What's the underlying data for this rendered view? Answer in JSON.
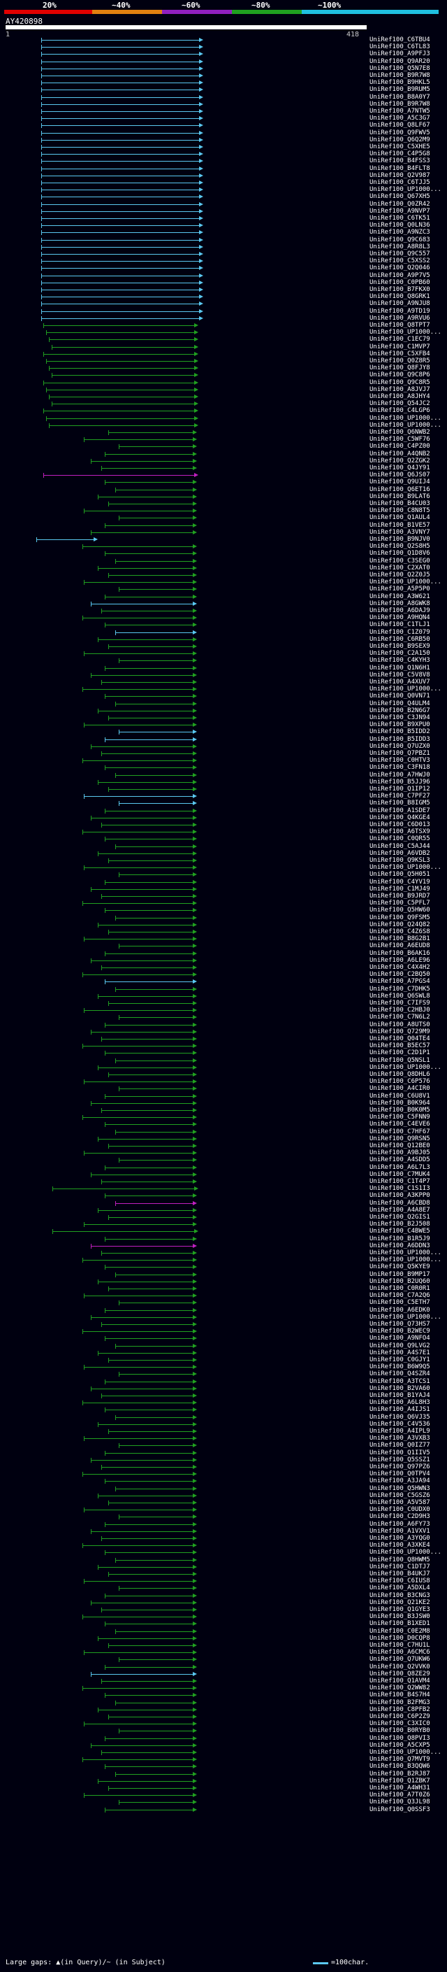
{
  "scale": {
    "labels": [
      "20%",
      "~40%",
      "~60%",
      "~80%",
      "~100%"
    ],
    "colors": [
      "#e00000",
      "#e08010",
      "#9020c0",
      "#20a020",
      "#20c0e0"
    ]
  },
  "query": {
    "title": "AY420898",
    "range_start": "1",
    "range_end": "418"
  },
  "hits": [
    {
      "label": "UniRef100_C6TBU4",
      "color": "#5bc8f0"
    },
    {
      "label": "UniRef100_C6TL83",
      "color": "#5bc8f0"
    },
    {
      "label": "UniRef100_A9PFJ3",
      "color": "#5bc8f0"
    },
    {
      "label": "UniRef100_Q9AR20",
      "color": "#5bc8f0"
    },
    {
      "label": "UniRef100_Q5N7E8",
      "color": "#5bc8f0"
    },
    {
      "label": "UniRef100_B9R7W8",
      "color": "#5bc8f0"
    },
    {
      "label": "UniRef100_B9HKL5",
      "color": "#5bc8f0"
    },
    {
      "label": "UniRef100_B9RUM5",
      "color": "#5bc8f0"
    },
    {
      "label": "UniRef100_B8A0Y7",
      "color": "#5bc8f0"
    },
    {
      "label": "UniRef100_B9R7W8",
      "color": "#5bc8f0"
    },
    {
      "label": "UniRef100_A7NTW5",
      "color": "#5bc8f0"
    },
    {
      "label": "UniRef100_A5C3G7",
      "color": "#5bc8f0"
    },
    {
      "label": "UniRef100_Q8LF67",
      "color": "#5bc8f0"
    },
    {
      "label": "UniRef100_Q9FWV5",
      "color": "#5bc8f0"
    },
    {
      "label": "UniRef100_Q6Q2M9",
      "color": "#5bc8f0"
    },
    {
      "label": "UniRef100_C5XHE5",
      "color": "#5bc8f0"
    },
    {
      "label": "UniRef100_C4P5G8",
      "color": "#5bc8f0"
    },
    {
      "label": "UniRef100_B4FSS3",
      "color": "#5bc8f0"
    },
    {
      "label": "UniRef100_B4FLT8",
      "color": "#5bc8f0"
    },
    {
      "label": "UniRef100_Q2V987",
      "color": "#5bc8f0"
    },
    {
      "label": "UniRef100_C6TJJ5",
      "color": "#5bc8f0"
    },
    {
      "label": "UniRef100_UP1000...",
      "color": "#5bc8f0"
    },
    {
      "label": "UniRef100_Q67XH5",
      "color": "#5bc8f0"
    },
    {
      "label": "UniRef100_Q0ZR42",
      "color": "#5bc8f0"
    },
    {
      "label": "UniRef100_A9NVP7",
      "color": "#5bc8f0"
    },
    {
      "label": "UniRef100_C6TK51",
      "color": "#5bc8f0"
    },
    {
      "label": "UniRef100_Q0LN36",
      "color": "#5bc8f0"
    },
    {
      "label": "UniRef100_A9NZC3",
      "color": "#5bc8f0"
    },
    {
      "label": "UniRef100_Q9C683",
      "color": "#5bc8f0"
    },
    {
      "label": "UniRef100_A8R8L3",
      "color": "#5bc8f0"
    },
    {
      "label": "UniRef100_Q9C557",
      "color": "#5bc8f0"
    },
    {
      "label": "UniRef100_C5XSS2",
      "color": "#5bc8f0"
    },
    {
      "label": "UniRef100_Q2Q046",
      "color": "#5bc8f0"
    },
    {
      "label": "UniRef100_A9P7V5",
      "color": "#5bc8f0"
    },
    {
      "label": "UniRef100_C0PB60",
      "color": "#5bc8f0"
    },
    {
      "label": "UniRef100_B7FKX0",
      "color": "#5bc8f0"
    },
    {
      "label": "UniRef100_Q8GRK1",
      "color": "#5bc8f0"
    },
    {
      "label": "UniRef100_A9NJU8",
      "color": "#5bc8f0"
    },
    {
      "label": "UniRef100_A9TD19",
      "color": "#5bc8f0"
    },
    {
      "label": "UniRef100_A9RVU6",
      "color": "#5bc8f0"
    },
    {
      "label": "UniRef100_Q8TPT7",
      "color": "#20a020"
    },
    {
      "label": "UniRef100_UP1000...",
      "color": "#20a020"
    },
    {
      "label": "UniRef100_C1EC79",
      "color": "#20a020"
    },
    {
      "label": "UniRef100_C1MVP7",
      "color": "#20a020"
    },
    {
      "label": "UniRef100_C5XFB4",
      "color": "#20a020"
    },
    {
      "label": "UniRef100_Q0Z8R5",
      "color": "#20a020"
    },
    {
      "label": "UniRef100_Q8FJY8",
      "color": "#20a020"
    },
    {
      "label": "UniRef100_Q9C8P6",
      "color": "#20a020"
    },
    {
      "label": "UniRef100_Q9C8R5",
      "color": "#20a020"
    },
    {
      "label": "UniRef100_A8JVJ7",
      "color": "#20a020"
    },
    {
      "label": "UniRef100_A8JHY4",
      "color": "#20a020"
    },
    {
      "label": "UniRef100_Q54JC2",
      "color": "#20a020"
    },
    {
      "label": "UniRef100_C4LGP6",
      "color": "#20a020"
    },
    {
      "label": "UniRef100_UP1000...",
      "color": "#20a020"
    },
    {
      "label": "UniRef100_UP1000...",
      "color": "#20a020"
    },
    {
      "label": "UniRef100_Q6NWB2",
      "color": "#20a020"
    },
    {
      "label": "UniRef100_C5WF76",
      "color": "#20a020"
    },
    {
      "label": "UniRef100_C4PZ00",
      "color": "#20a020"
    },
    {
      "label": "UniRef100_A4QNB2",
      "color": "#20a020"
    },
    {
      "label": "UniRef100_Q2ZGK2",
      "color": "#20a020"
    },
    {
      "label": "UniRef100_Q4JY91",
      "color": "#20a020"
    },
    {
      "label": "UniRef100_Q6JS07",
      "color": "#c020c0"
    },
    {
      "label": "UniRef100_Q9UIJ4",
      "color": "#20a020"
    },
    {
      "label": "UniRef100_Q6ET16",
      "color": "#20a020"
    },
    {
      "label": "UniRef100_B9LAT6",
      "color": "#20a020"
    },
    {
      "label": "UniRef100_B4CU03",
      "color": "#20a020"
    },
    {
      "label": "UniRef100_C8N8T5",
      "color": "#20a020"
    },
    {
      "label": "UniRef100_Q1AUL4",
      "color": "#20a020"
    },
    {
      "label": "UniRef100_B1VE57",
      "color": "#20a020"
    },
    {
      "label": "UniRef100_A3VNY7",
      "color": "#20a020"
    },
    {
      "label": "UniRef100_B9NJV0",
      "color": "#5bc8f0"
    },
    {
      "label": "UniRef100_Q2S8H5",
      "color": "#20a020"
    },
    {
      "label": "UniRef100_Q1D8V6",
      "color": "#20a020"
    },
    {
      "label": "UniRef100_C3SEG0",
      "color": "#20a020"
    },
    {
      "label": "UniRef100_C2XAT0",
      "color": "#20a020"
    },
    {
      "label": "UniRef100_Q2Z0J5",
      "color": "#20a020"
    },
    {
      "label": "UniRef100_UP1000...",
      "color": "#20a020"
    },
    {
      "label": "UniRef100_A5P5P0",
      "color": "#20a020"
    },
    {
      "label": "UniRef100_A3W621",
      "color": "#20a020"
    },
    {
      "label": "UniRef100_A8GWK8",
      "color": "#5bc8f0"
    },
    {
      "label": "UniRef100_A6DAJ9",
      "color": "#20a020"
    },
    {
      "label": "UniRef100_A9HQN4",
      "color": "#20a020"
    },
    {
      "label": "UniRef100_C1TLJ1",
      "color": "#20a020"
    },
    {
      "label": "UniRef100_C1Z079",
      "color": "#5bc8f0"
    },
    {
      "label": "UniRef100_C6RB50",
      "color": "#20a020"
    },
    {
      "label": "UniRef100_B9SEX9",
      "color": "#20a020"
    },
    {
      "label": "UniRef100_C2A150",
      "color": "#20a020"
    },
    {
      "label": "UniRef100_C4KYH3",
      "color": "#20a020"
    },
    {
      "label": "UniRef100_Q1N6H1",
      "color": "#20a020"
    },
    {
      "label": "UniRef100_C5V8V8",
      "color": "#20a020"
    },
    {
      "label": "UniRef100_A4XUV7",
      "color": "#20a020"
    },
    {
      "label": "UniRef100_UP1000...",
      "color": "#20a020"
    },
    {
      "label": "UniRef100_Q0VN71",
      "color": "#20a020"
    },
    {
      "label": "UniRef100_Q4ULM4",
      "color": "#20a020"
    },
    {
      "label": "UniRef100_B2N6G7",
      "color": "#20a020"
    },
    {
      "label": "UniRef100_C3JN94",
      "color": "#20a020"
    },
    {
      "label": "UniRef100_B9XPU0",
      "color": "#20a020"
    },
    {
      "label": "UniRef100_B5IDD2",
      "color": "#5bc8f0"
    },
    {
      "label": "UniRef100_B5IDD3",
      "color": "#5bc8f0"
    },
    {
      "label": "UniRef100_Q7UZX0",
      "color": "#20a020"
    },
    {
      "label": "UniRef100_Q7PBZ1",
      "color": "#20a020"
    },
    {
      "label": "UniRef100_C0HTV3",
      "color": "#20a020"
    },
    {
      "label": "UniRef100_C3FN18",
      "color": "#20a020"
    },
    {
      "label": "UniRef100_A7HWJ0",
      "color": "#20a020"
    },
    {
      "label": "UniRef100_B5JJ96",
      "color": "#20a020"
    },
    {
      "label": "UniRef100_Q1IP12",
      "color": "#20a020"
    },
    {
      "label": "UniRef100_C7PF27",
      "color": "#5bc8f0"
    },
    {
      "label": "UniRef100_B8IGM5",
      "color": "#5bc8f0"
    },
    {
      "label": "UniRef100_A1SDE7",
      "color": "#20a020"
    },
    {
      "label": "UniRef100_Q4KGE4",
      "color": "#20a020"
    },
    {
      "label": "UniRef100_C6D013",
      "color": "#20a020"
    },
    {
      "label": "UniRef100_A6TSX9",
      "color": "#20a020"
    },
    {
      "label": "UniRef100_C0QR55",
      "color": "#20a020"
    },
    {
      "label": "UniRef100_C5AJ44",
      "color": "#20a020"
    },
    {
      "label": "UniRef100_A6VDB2",
      "color": "#20a020"
    },
    {
      "label": "UniRef100_Q9KSL3",
      "color": "#20a020"
    },
    {
      "label": "UniRef100_UP1000...",
      "color": "#20a020"
    },
    {
      "label": "UniRef100_Q5H051",
      "color": "#20a020"
    },
    {
      "label": "UniRef100_C4YV19",
      "color": "#20a020"
    },
    {
      "label": "UniRef100_C1MJ49",
      "color": "#20a020"
    },
    {
      "label": "UniRef100_B9JRD7",
      "color": "#20a020"
    },
    {
      "label": "UniRef100_C5PFL7",
      "color": "#20a020"
    },
    {
      "label": "UniRef100_Q5HW60",
      "color": "#20a020"
    },
    {
      "label": "UniRef100_Q9FSM5",
      "color": "#20a020"
    },
    {
      "label": "UniRef100_Q24Q82",
      "color": "#20a020"
    },
    {
      "label": "UniRef100_C4Z6S8",
      "color": "#20a020"
    },
    {
      "label": "UniRef100_B8G2B1",
      "color": "#20a020"
    },
    {
      "label": "UniRef100_A6EUD8",
      "color": "#20a020"
    },
    {
      "label": "UniRef100_B6AK16",
      "color": "#20a020"
    },
    {
      "label": "UniRef100_A6LE96",
      "color": "#20a020"
    },
    {
      "label": "UniRef100_C4X4H2",
      "color": "#20a020"
    },
    {
      "label": "UniRef100_C2BQ50",
      "color": "#20a020"
    },
    {
      "label": "UniRef100_A7PGS4",
      "color": "#5bc8f0"
    },
    {
      "label": "UniRef100_C7DHK5",
      "color": "#20a020"
    },
    {
      "label": "UniRef100_Q6SWL8",
      "color": "#20a020"
    },
    {
      "label": "UniRef100_C7IFS9",
      "color": "#20a020"
    },
    {
      "label": "UniRef100_C2HBJ0",
      "color": "#20a020"
    },
    {
      "label": "UniRef100_C7N6L2",
      "color": "#20a020"
    },
    {
      "label": "UniRef100_A8UTS0",
      "color": "#20a020"
    },
    {
      "label": "UniRef100_Q729M9",
      "color": "#20a020"
    },
    {
      "label": "UniRef100_Q04TE4",
      "color": "#20a020"
    },
    {
      "label": "UniRef100_B5EC57",
      "color": "#20a020"
    },
    {
      "label": "UniRef100_C2D1P1",
      "color": "#20a020"
    },
    {
      "label": "UniRef100_Q5NSL1",
      "color": "#20a020"
    },
    {
      "label": "UniRef100_UP1000...",
      "color": "#20a020"
    },
    {
      "label": "UniRef100_Q8DHL6",
      "color": "#20a020"
    },
    {
      "label": "UniRef100_C6P576",
      "color": "#20a020"
    },
    {
      "label": "UniRef100_A4CIR0",
      "color": "#20a020"
    },
    {
      "label": "UniRef100_C6U8V1",
      "color": "#20a020"
    },
    {
      "label": "UniRef100_B0K964",
      "color": "#20a020"
    },
    {
      "label": "UniRef100_B0K0M5",
      "color": "#20a020"
    },
    {
      "label": "UniRef100_C5FNN9",
      "color": "#20a020"
    },
    {
      "label": "UniRef100_C4EVE6",
      "color": "#20a020"
    },
    {
      "label": "UniRef100_C7HF67",
      "color": "#20a020"
    },
    {
      "label": "UniRef100_Q9RSN5",
      "color": "#20a020"
    },
    {
      "label": "UniRef100_Q12BE0",
      "color": "#20a020"
    },
    {
      "label": "UniRef100_A9BJ05",
      "color": "#20a020"
    },
    {
      "label": "UniRef100_A4SDD5",
      "color": "#20a020"
    },
    {
      "label": "UniRef100_A6L7L3",
      "color": "#20a020"
    },
    {
      "label": "UniRef100_C7MUK4",
      "color": "#20a020"
    },
    {
      "label": "UniRef100_C1T4P7",
      "color": "#20a020"
    },
    {
      "label": "UniRef100_C1S1I3",
      "color": "#20a020"
    },
    {
      "label": "UniRef100_A3KPP0",
      "color": "#20a020"
    },
    {
      "label": "UniRef100_A6CBD8",
      "color": "#c020c0"
    },
    {
      "label": "UniRef100_A4A8E7",
      "color": "#20a020"
    },
    {
      "label": "UniRef100_Q2GIS1",
      "color": "#20a020"
    },
    {
      "label": "UniRef100_B2J508",
      "color": "#20a020"
    },
    {
      "label": "UniRef100_C4BWE5",
      "color": "#20a020"
    },
    {
      "label": "UniRef100_B1R5J9",
      "color": "#20a020"
    },
    {
      "label": "UniRef100_A6DDN3",
      "color": "#c020c0"
    },
    {
      "label": "UniRef100_UP1000...",
      "color": "#20a020"
    },
    {
      "label": "UniRef100_UP1000...",
      "color": "#20a020"
    },
    {
      "label": "UniRef100_Q5KYE9",
      "color": "#20a020"
    },
    {
      "label": "UniRef100_B9MP17",
      "color": "#20a020"
    },
    {
      "label": "UniRef100_B2UQ60",
      "color": "#20a020"
    },
    {
      "label": "UniRef100_C0R0R1",
      "color": "#20a020"
    },
    {
      "label": "UniRef100_C7A2Q6",
      "color": "#20a020"
    },
    {
      "label": "UniRef100_C5ETH7",
      "color": "#20a020"
    },
    {
      "label": "UniRef100_A6EDK0",
      "color": "#20a020"
    },
    {
      "label": "UniRef100_UP1000...",
      "color": "#20a020"
    },
    {
      "label": "UniRef100_Q73HS7",
      "color": "#20a020"
    },
    {
      "label": "UniRef100_B2WEC9",
      "color": "#20a020"
    },
    {
      "label": "UniRef100_A9NFO4",
      "color": "#20a020"
    },
    {
      "label": "UniRef100_Q9LVG2",
      "color": "#20a020"
    },
    {
      "label": "UniRef100_A4S7E1",
      "color": "#20a020"
    },
    {
      "label": "UniRef100_C0GJY1",
      "color": "#20a020"
    },
    {
      "label": "UniRef100_B6W9Q5",
      "color": "#20a020"
    },
    {
      "label": "UniRef100_Q4SZR4",
      "color": "#20a020"
    },
    {
      "label": "UniRef100_A3TCS1",
      "color": "#20a020"
    },
    {
      "label": "UniRef100_B2VA60",
      "color": "#20a020"
    },
    {
      "label": "UniRef100_B1YAJ4",
      "color": "#20a020"
    },
    {
      "label": "UniRef100_A6L8H3",
      "color": "#20a020"
    },
    {
      "label": "UniRef100_A4IJS1",
      "color": "#20a020"
    },
    {
      "label": "UniRef100_Q6VJ35",
      "color": "#20a020"
    },
    {
      "label": "UniRef100_C4V536",
      "color": "#20a020"
    },
    {
      "label": "UniRef100_A4IPL9",
      "color": "#20a020"
    },
    {
      "label": "UniRef100_A3VXB3",
      "color": "#20a020"
    },
    {
      "label": "UniRef100_Q0IZ77",
      "color": "#20a020"
    },
    {
      "label": "UniRef100_Q1IIV5",
      "color": "#20a020"
    },
    {
      "label": "UniRef100_Q5SSZ1",
      "color": "#20a020"
    },
    {
      "label": "UniRef100_Q97PZ6",
      "color": "#20a020"
    },
    {
      "label": "UniRef100_Q0TPV4",
      "color": "#20a020"
    },
    {
      "label": "UniRef100_A3JA94",
      "color": "#20a020"
    },
    {
      "label": "UniRef100_Q5HWN3",
      "color": "#20a020"
    },
    {
      "label": "UniRef100_C5GSZ6",
      "color": "#20a020"
    },
    {
      "label": "UniRef100_A5V587",
      "color": "#20a020"
    },
    {
      "label": "UniRef100_C0UDX0",
      "color": "#20a020"
    },
    {
      "label": "UniRef100_C2D9H3",
      "color": "#20a020"
    },
    {
      "label": "UniRef100_A6FY73",
      "color": "#20a020"
    },
    {
      "label": "UniRef100_A1VXV1",
      "color": "#20a020"
    },
    {
      "label": "UniRef100_A3YQG0",
      "color": "#20a020"
    },
    {
      "label": "UniRef100_A3XKE4",
      "color": "#20a020"
    },
    {
      "label": "UniRef100_UP1000...",
      "color": "#20a020"
    },
    {
      "label": "UniRef100_Q8HWM5",
      "color": "#20a020"
    },
    {
      "label": "UniRef100_C1DTJ7",
      "color": "#20a020"
    },
    {
      "label": "UniRef100_B4UKJ7",
      "color": "#20a020"
    },
    {
      "label": "UniRef100_C6IUS8",
      "color": "#20a020"
    },
    {
      "label": "UniRef100_A5DXL4",
      "color": "#20a020"
    },
    {
      "label": "UniRef100_B3CNG3",
      "color": "#20a020"
    },
    {
      "label": "UniRef100_Q21KE2",
      "color": "#20a020"
    },
    {
      "label": "UniRef100_Q1GYE3",
      "color": "#20a020"
    },
    {
      "label": "UniRef100_B3JSW0",
      "color": "#20a020"
    },
    {
      "label": "UniRef100_B1XED1",
      "color": "#20a020"
    },
    {
      "label": "UniRef100_C0E2M8",
      "color": "#20a020"
    },
    {
      "label": "UniRef100_D0CQP8",
      "color": "#20a020"
    },
    {
      "label": "UniRef100_C7HU1L",
      "color": "#20a020"
    },
    {
      "label": "UniRef100_A6CMC6",
      "color": "#20a020"
    },
    {
      "label": "UniRef100_Q7UKW6",
      "color": "#20a020"
    },
    {
      "label": "UniRef100_Q2VVK0",
      "color": "#20a020"
    },
    {
      "label": "UniRef100_Q8ZE29",
      "color": "#5bc8f0"
    },
    {
      "label": "UniRef100_Q1AVM4",
      "color": "#20a020"
    },
    {
      "label": "UniRef100_Q2WW82",
      "color": "#20a020"
    },
    {
      "label": "UniRef100_B4S7H4",
      "color": "#20a020"
    },
    {
      "label": "UniRef100_B2FMG3",
      "color": "#20a020"
    },
    {
      "label": "UniRef100_C8PFB2",
      "color": "#20a020"
    },
    {
      "label": "UniRef100_C6P2Z9",
      "color": "#20a020"
    },
    {
      "label": "UniRef100_C3XIC0",
      "color": "#20a020"
    },
    {
      "label": "UniRef100_B0RYB0",
      "color": "#20a020"
    },
    {
      "label": "UniRef100_Q8PVI3",
      "color": "#20a020"
    },
    {
      "label": "UniRef100_A5CXP5",
      "color": "#20a020"
    },
    {
      "label": "UniRef100_UP1000...",
      "color": "#20a020"
    },
    {
      "label": "UniRef100_Q7MVT9",
      "color": "#20a020"
    },
    {
      "label": "UniRef100_B3QQW6",
      "color": "#20a020"
    },
    {
      "label": "UniRef100_B2RJ87",
      "color": "#20a020"
    },
    {
      "label": "UniRef100_Q1ZBK7",
      "color": "#20a020"
    },
    {
      "label": "UniRef100_A4WH31",
      "color": "#20a020"
    },
    {
      "label": "UniRef100_A7T0Z6",
      "color": "#20a020"
    },
    {
      "label": "UniRef100_Q3JL98",
      "color": "#20a020"
    },
    {
      "label": "UniRef100_Q0SSF3",
      "color": "#20a020"
    }
  ],
  "footer": {
    "left_text": "Large gaps: ▲(in Query)/~ (in Subject)",
    "key_text": "=100char."
  }
}
